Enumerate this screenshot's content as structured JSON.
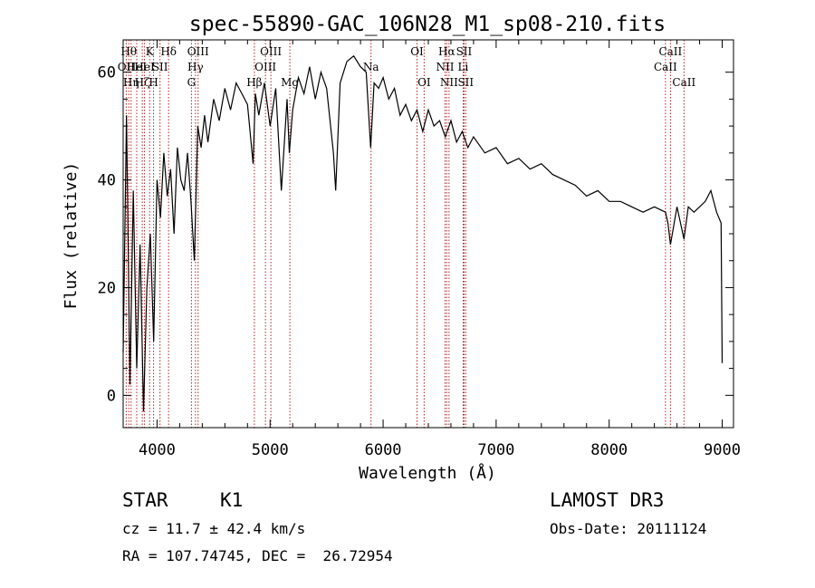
{
  "chart_data": {
    "type": "line",
    "title": "spec-55890-GAC_106N28_M1_sp08-210.fits",
    "xlabel": "Wavelength (Å)",
    "ylabel": "Flux (relative)",
    "xlim": [
      3700,
      9100
    ],
    "ylim": [
      -6,
      66
    ],
    "xticks": [
      4000,
      5000,
      6000,
      7000,
      8000,
      9000
    ],
    "yticks": [
      0,
      20,
      40,
      60
    ],
    "series": [
      {
        "name": "flux",
        "x": [
          3700,
          3730,
          3760,
          3790,
          3820,
          3850,
          3880,
          3910,
          3940,
          3970,
          4000,
          4030,
          4060,
          4090,
          4120,
          4150,
          4180,
          4210,
          4240,
          4270,
          4300,
          4330,
          4360,
          4390,
          4420,
          4450,
          4500,
          4550,
          4600,
          4650,
          4700,
          4750,
          4800,
          4850,
          4870,
          4900,
          4950,
          5000,
          5050,
          5100,
          5150,
          5170,
          5200,
          5250,
          5300,
          5350,
          5400,
          5450,
          5500,
          5560,
          5580,
          5620,
          5680,
          5740,
          5800,
          5850,
          5890,
          5920,
          5960,
          6000,
          6050,
          6100,
          6150,
          6200,
          6250,
          6300,
          6350,
          6400,
          6450,
          6500,
          6550,
          6600,
          6650,
          6700,
          6750,
          6800,
          6900,
          7000,
          7100,
          7200,
          7300,
          7400,
          7500,
          7600,
          7700,
          7800,
          7900,
          8000,
          8100,
          8200,
          8300,
          8400,
          8498,
          8520,
          8542,
          8600,
          8662,
          8700,
          8750,
          8800,
          8850,
          8900,
          8950,
          8990,
          9000
        ],
        "y": [
          8,
          52,
          2,
          38,
          5,
          28,
          -3,
          20,
          30,
          10,
          40,
          33,
          45,
          37,
          42,
          30,
          46,
          40,
          38,
          45,
          36,
          25,
          50,
          46,
          52,
          47,
          55,
          51,
          57,
          53,
          58,
          56,
          54,
          43,
          56,
          52,
          58,
          50,
          57,
          38,
          55,
          45,
          53,
          59,
          56,
          61,
          55,
          60,
          57,
          45,
          38,
          58,
          62,
          63,
          61,
          60,
          46,
          58,
          57,
          59,
          55,
          57,
          52,
          54,
          51,
          53,
          49,
          53,
          50,
          51,
          48,
          51,
          47,
          49,
          46,
          48,
          45,
          46,
          43,
          44,
          42,
          43,
          41,
          40,
          39,
          37,
          38,
          36,
          36,
          35,
          34,
          35,
          34,
          32,
          28,
          35,
          29,
          35,
          34,
          35,
          36,
          38,
          34,
          32,
          6
        ]
      }
    ],
    "lines": [
      {
        "x": 3727,
        "label": "OII",
        "row": 2
      },
      {
        "x": 3750,
        "label": "Hθ",
        "row": 1
      },
      {
        "x": 3770,
        "label": "Hη",
        "row": 3
      },
      {
        "x": 3820,
        "label": "HeI",
        "row": 2
      },
      {
        "x": 3869,
        "label": "Hζ",
        "row": 3
      },
      {
        "x": 3889,
        "label": "HeI",
        "row": 2
      },
      {
        "x": 3934,
        "label": "K",
        "row": 1
      },
      {
        "x": 3969,
        "label": "H",
        "row": 3
      },
      {
        "x": 4026,
        "label": "SII",
        "row": 2
      },
      {
        "x": 4102,
        "label": "Hδ",
        "row": 1
      },
      {
        "x": 4304,
        "label": "G",
        "row": 3
      },
      {
        "x": 4340,
        "label": "Hγ",
        "row": 2
      },
      {
        "x": 4363,
        "label": "OIII",
        "row": 1
      },
      {
        "x": 4861,
        "label": "Hβ",
        "row": 3
      },
      {
        "x": 4959,
        "label": "OIII",
        "row": 2
      },
      {
        "x": 5007,
        "label": "OIII",
        "row": 1
      },
      {
        "x": 5175,
        "label": "Mg",
        "row": 3
      },
      {
        "x": 5893,
        "label": "Na",
        "row": 2
      },
      {
        "x": 6300,
        "label": "OI",
        "row": 1
      },
      {
        "x": 6363,
        "label": "OI",
        "row": 3
      },
      {
        "x": 6548,
        "label": "NII",
        "row": 2
      },
      {
        "x": 6563,
        "label": "Hα",
        "row": 1
      },
      {
        "x": 6583,
        "label": "NII",
        "row": 3
      },
      {
        "x": 6708,
        "label": "Li",
        "row": 2
      },
      {
        "x": 6716,
        "label": "SII",
        "row": 1
      },
      {
        "x": 6731,
        "label": "SII",
        "row": 3
      },
      {
        "x": 8498,
        "label": "CaII",
        "row": 2
      },
      {
        "x": 8542,
        "label": "CaII",
        "row": 1
      },
      {
        "x": 8662,
        "label": "CaII",
        "row": 3
      }
    ],
    "line_color": "#b22222"
  },
  "info": {
    "class": "STAR",
    "subclass": "K1",
    "survey": "LAMOST DR3",
    "cz": "cz = 11.7 ± 42.4 km/s",
    "obs_date": "Obs-Date: 20111124",
    "coords": "RA = 107.74745, DEC =  26.72954"
  }
}
